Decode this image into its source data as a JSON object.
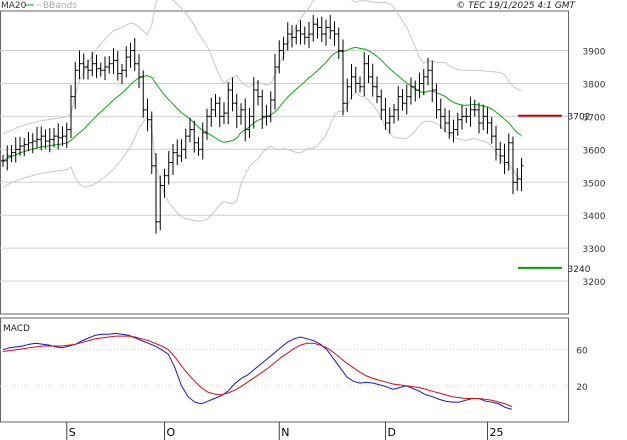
{
  "legend": {
    "ma": "MA20",
    "bb": "BBands"
  },
  "copyright": "© TEC 19/1/2025 4:1 GMT",
  "macd_label": "MACD",
  "colors": {
    "bars": "#000000",
    "ma": "#00b000",
    "bbands": "#c8c8c8",
    "resistance": "#cc0000",
    "support": "#00a000",
    "macd": "#1515d0",
    "signal": "#d01010",
    "grid": "#d0d0d0"
  },
  "chart_data": [
    {
      "type": "ohlc",
      "y_ticks": [
        3200,
        3300,
        3400,
        3500,
        3600,
        3700,
        3800,
        3900
      ],
      "ylim": [
        3100,
        4020
      ],
      "x_ticks": [
        {
          "label": "S",
          "bar": 15
        },
        {
          "label": "O",
          "bar": 38
        },
        {
          "label": "N",
          "bar": 65
        },
        {
          "label": "D",
          "bar": 90
        },
        {
          "label": "25",
          "bar": 114
        }
      ],
      "levels": [
        {
          "name": "resistance",
          "value": 3702,
          "label": "3702"
        },
        {
          "name": "support",
          "value": 3240,
          "label": "3240"
        }
      ],
      "closes": [
        3565,
        3580,
        3590,
        3600,
        3610,
        3615,
        3620,
        3625,
        3630,
        3640,
        3625,
        3630,
        3640,
        3635,
        3640,
        3660,
        3760,
        3840,
        3860,
        3850,
        3840,
        3860,
        3845,
        3840,
        3850,
        3860,
        3870,
        3830,
        3840,
        3880,
        3900,
        3860,
        3820,
        3720,
        3690,
        3550,
        3380,
        3490,
        3520,
        3560,
        3590,
        3580,
        3600,
        3640,
        3660,
        3620,
        3600,
        3650,
        3700,
        3720,
        3740,
        3700,
        3710,
        3780,
        3740,
        3700,
        3720,
        3660,
        3700,
        3780,
        3760,
        3700,
        3700,
        3750,
        3850,
        3900,
        3920,
        3950,
        3940,
        3960,
        3950,
        3940,
        3950,
        3980,
        3970,
        3950,
        3970,
        3960,
        3950,
        3900,
        3740,
        3790,
        3820,
        3800,
        3790,
        3860,
        3820,
        3790,
        3760,
        3720,
        3680,
        3700,
        3720,
        3760,
        3740,
        3760,
        3790,
        3780,
        3800,
        3820,
        3840,
        3780,
        3720,
        3700,
        3680,
        3650,
        3660,
        3690,
        3700,
        3700,
        3720,
        3720,
        3680,
        3700,
        3680,
        3640,
        3600,
        3580,
        3560,
        3620,
        3500,
        3510,
        3550
      ]
    },
    {
      "type": "line",
      "title": "MACD",
      "y_ticks": [
        20,
        60
      ],
      "ylim": [
        -20,
        95
      ],
      "series": [
        {
          "name": "MACD",
          "values": [
            60,
            62,
            63,
            64,
            66,
            67,
            66,
            65,
            63,
            62,
            64,
            66,
            70,
            73,
            76,
            77,
            77,
            78,
            77,
            76,
            73,
            70,
            67,
            64,
            60,
            55,
            40,
            20,
            8,
            2,
            0,
            3,
            6,
            9,
            14,
            22,
            28,
            32,
            38,
            44,
            50,
            56,
            62,
            68,
            72,
            74,
            72,
            70,
            66,
            60,
            50,
            40,
            30,
            25,
            23,
            24,
            23,
            21,
            19,
            16,
            18,
            20,
            17,
            14,
            10,
            8,
            5,
            3,
            2,
            2,
            4,
            6,
            6,
            3,
            2,
            0,
            -4,
            -6
          ]
        },
        {
          "name": "Signal",
          "values": [
            58,
            59,
            60,
            61,
            62,
            63,
            64,
            64,
            64,
            64,
            65,
            66,
            68,
            70,
            72,
            73,
            74,
            75,
            75,
            75,
            74,
            72,
            70,
            67,
            64,
            60,
            52,
            42,
            33,
            25,
            18,
            13,
            11,
            10,
            12,
            15,
            19,
            24,
            29,
            34,
            39,
            45,
            51,
            56,
            61,
            65,
            67,
            67,
            65,
            62,
            57,
            51,
            45,
            40,
            35,
            31,
            28,
            26,
            24,
            22,
            21,
            20,
            19,
            18,
            16,
            14,
            12,
            10,
            8,
            7,
            6,
            6,
            6,
            5,
            4,
            2,
            0,
            -3
          ]
        }
      ]
    }
  ]
}
